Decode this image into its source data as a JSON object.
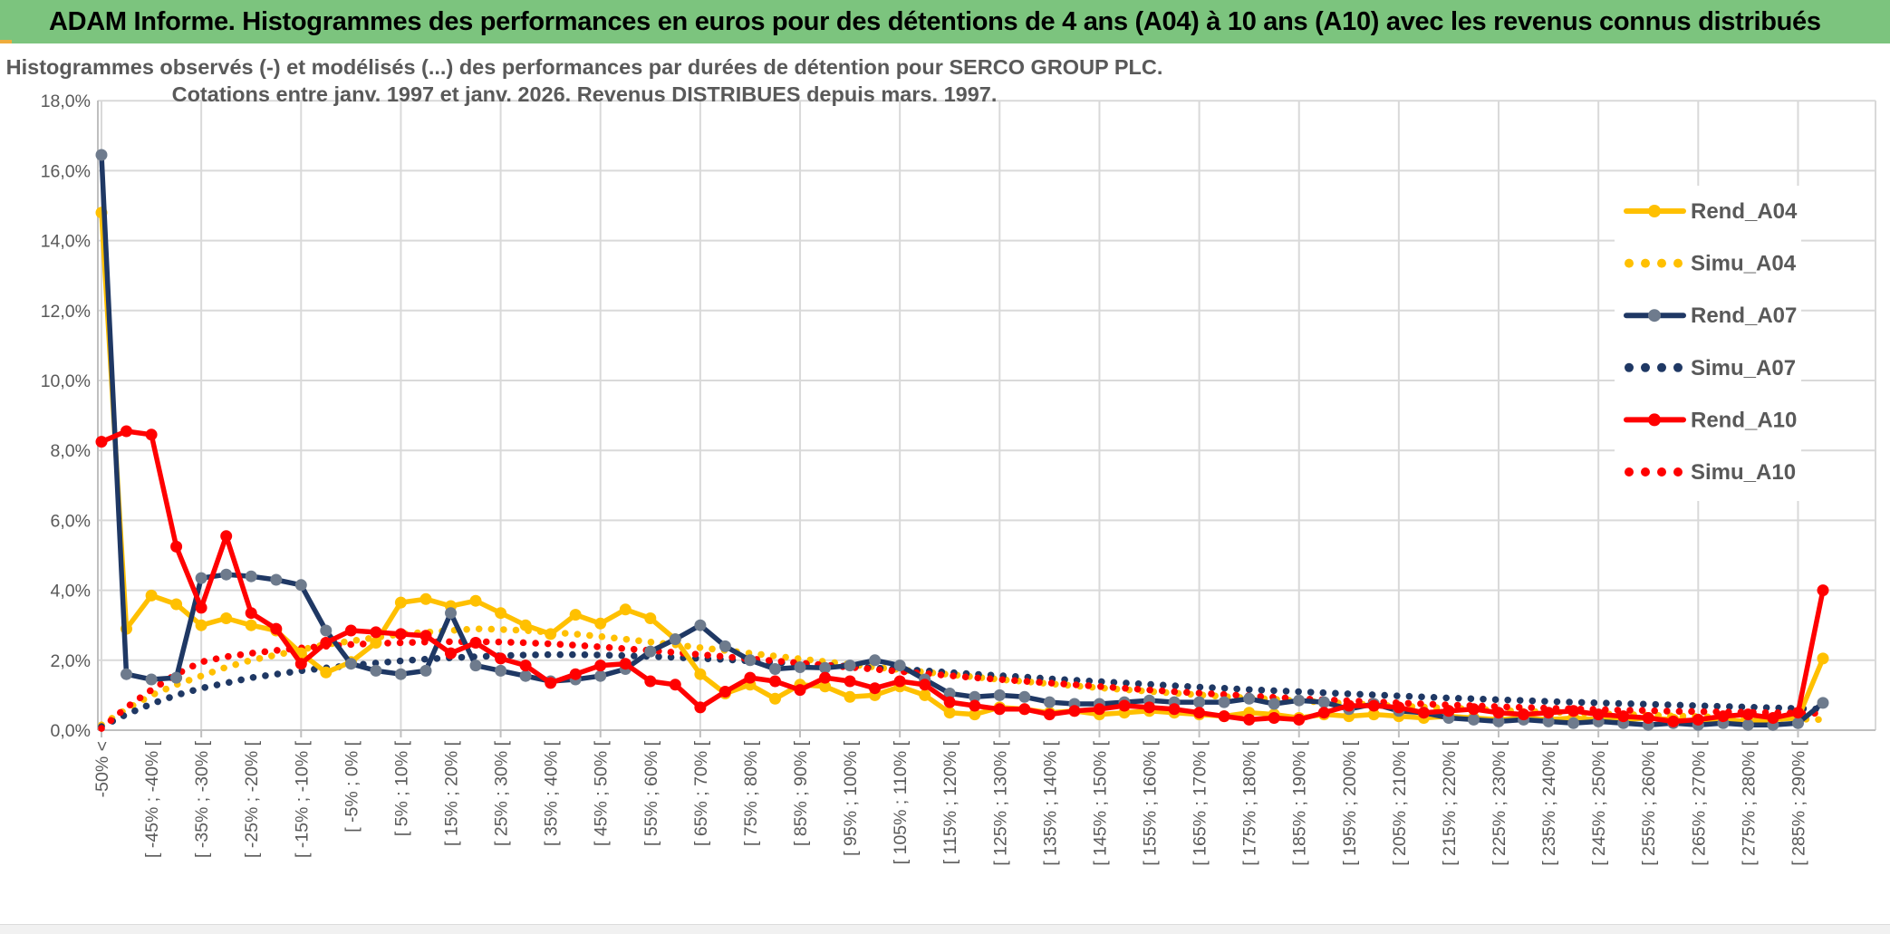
{
  "header": {
    "title": "ADAM Informe. Histogrammes des performances en euros pour des détentions de 4 ans (A04) à 10 ans (A10) avec les revenus connus distribués"
  },
  "colors": {
    "header_green": "#7CC47E",
    "accent_gold": "#EFAC3C",
    "title_text": "#595959",
    "axis_text": "#595959",
    "gridline": "#D9D9D9",
    "axis_line": "#BFBFBF",
    "series_yellow": "#FFC000",
    "series_navy": "#1F3864",
    "series_navy_marker": "#6E7B8D",
    "series_red": "#FF0000"
  },
  "chart_data": {
    "type": "line",
    "title_lines": [
      "Histogrammes observés (-) et modélisés (...) des performances par durées de détention pour SERCO GROUP PLC.",
      "Cotations entre janv. 1997 et janv. 2026. Revenus DISTRIBUES depuis mars. 1997."
    ],
    "grid": true,
    "legend_position": "right-upper",
    "ylim": [
      0,
      18
    ],
    "ytick_step_pct": 2,
    "ytick_labels": [
      "0,0%",
      "2,0%",
      "4,0%",
      "6,0%",
      "8,0%",
      "10,0%",
      "12,0%",
      "14,0%",
      "16,0%",
      "18,0%"
    ],
    "n_bins": 70,
    "x_labels_every_other_bin": [
      "-50% <",
      "[ -45% ; -40% [",
      "[ -35% ; -30% [",
      "[ -25% ; -20% [",
      "[ -15% ; -10% [",
      "[ -5% ; 0% [",
      "[ 5% ; 10% [",
      "[ 15% ; 20% [",
      "[ 25% ; 30% [",
      "[ 35% ; 40% [",
      "[ 45% ; 50% [",
      "[ 55% ; 60% [",
      "[ 65% ; 70% [",
      "[ 75% ; 80% [",
      "[ 85% ; 90% [",
      "[ 95% ; 100% [",
      "[ 105% ; 110% [",
      "[ 115% ; 120% [",
      "[ 125% ; 130% [",
      "[ 135% ; 140% [",
      "[ 145% ; 150% [",
      "[ 155% ; 160% [",
      "[ 165% ; 170% [",
      "[ 175% ; 180% [",
      "[ 185% ; 190% [",
      "[ 195% ; 200% [",
      "[ 205% ; 210% [",
      "[ 215% ; 220% [",
      "[ 225% ; 230% [",
      "[ 235% ; 240% [",
      "[ 245% ; 250% [",
      "[ 255% ; 260% [",
      "[ 265% ; 270% [",
      "[ 275% ; 280% [",
      "[ 285% ; 290% ["
    ],
    "series": [
      {
        "name": "Rend_A04",
        "style": "solid",
        "color": "#FFC000",
        "marker_color": "#FFC000",
        "values": [
          14.8,
          2.9,
          3.85,
          3.6,
          3.0,
          3.2,
          3.0,
          2.85,
          2.2,
          1.65,
          1.95,
          2.5,
          3.65,
          3.75,
          3.55,
          3.7,
          3.35,
          3.0,
          2.75,
          3.3,
          3.05,
          3.45,
          3.2,
          2.6,
          1.6,
          1.05,
          1.3,
          0.9,
          1.3,
          1.25,
          0.95,
          1.0,
          1.25,
          1.0,
          0.5,
          0.45,
          0.65,
          0.6,
          0.5,
          0.55,
          0.45,
          0.5,
          0.55,
          0.5,
          0.45,
          0.4,
          0.5,
          0.45,
          0.35,
          0.45,
          0.4,
          0.45,
          0.4,
          0.35,
          0.4,
          0.35,
          0.3,
          0.35,
          0.3,
          0.35,
          0.3,
          0.3,
          0.35,
          0.3,
          0.25,
          0.3,
          0.25,
          0.3,
          0.35,
          2.05
        ]
      },
      {
        "name": "Simu_A04",
        "style": "dotted",
        "color": "#FFC000",
        "values": [
          0.15,
          0.6,
          1.0,
          1.3,
          1.55,
          1.8,
          2.0,
          2.15,
          2.3,
          2.45,
          2.55,
          2.65,
          2.75,
          2.8,
          2.85,
          2.9,
          2.88,
          2.85,
          2.8,
          2.75,
          2.68,
          2.6,
          2.52,
          2.44,
          2.36,
          2.28,
          2.2,
          2.12,
          2.04,
          1.96,
          1.88,
          1.8,
          1.73,
          1.66,
          1.59,
          1.52,
          1.45,
          1.39,
          1.33,
          1.27,
          1.21,
          1.16,
          1.11,
          1.06,
          1.01,
          0.96,
          0.92,
          0.88,
          0.84,
          0.8,
          0.76,
          0.72,
          0.69,
          0.66,
          0.63,
          0.6,
          0.57,
          0.54,
          0.52,
          0.5,
          0.47,
          0.45,
          0.43,
          0.41,
          0.39,
          0.37,
          0.35,
          0.34,
          0.32,
          0.3
        ]
      },
      {
        "name": "Rend_A07",
        "style": "solid",
        "color": "#1F3864",
        "marker_color": "#6E7B8D",
        "values": [
          16.45,
          1.6,
          1.45,
          1.5,
          4.35,
          4.45,
          4.4,
          4.3,
          4.15,
          2.85,
          1.9,
          1.7,
          1.6,
          1.7,
          3.35,
          1.85,
          1.7,
          1.55,
          1.4,
          1.45,
          1.55,
          1.75,
          2.25,
          2.6,
          3.0,
          2.4,
          2.0,
          1.75,
          1.8,
          1.78,
          1.85,
          2.0,
          1.85,
          1.45,
          1.05,
          0.95,
          1.0,
          0.95,
          0.8,
          0.75,
          0.75,
          0.8,
          0.85,
          0.8,
          0.8,
          0.8,
          0.9,
          0.75,
          0.85,
          0.8,
          0.6,
          0.75,
          0.55,
          0.5,
          0.35,
          0.3,
          0.25,
          0.3,
          0.25,
          0.2,
          0.25,
          0.2,
          0.15,
          0.2,
          0.15,
          0.2,
          0.15,
          0.15,
          0.2,
          0.78
        ]
      },
      {
        "name": "Simu_A07",
        "style": "dotted",
        "color": "#1F3864",
        "values": [
          0.1,
          0.45,
          0.75,
          1.0,
          1.2,
          1.35,
          1.5,
          1.6,
          1.7,
          1.78,
          1.85,
          1.92,
          1.98,
          2.03,
          2.07,
          2.1,
          2.13,
          2.15,
          2.16,
          2.16,
          2.15,
          2.13,
          2.11,
          2.08,
          2.05,
          2.02,
          1.98,
          1.94,
          1.9,
          1.86,
          1.82,
          1.78,
          1.74,
          1.7,
          1.65,
          1.6,
          1.56,
          1.52,
          1.47,
          1.43,
          1.39,
          1.35,
          1.31,
          1.27,
          1.23,
          1.2,
          1.16,
          1.13,
          1.1,
          1.07,
          1.04,
          1.01,
          0.98,
          0.95,
          0.92,
          0.9,
          0.87,
          0.85,
          0.82,
          0.8,
          0.78,
          0.76,
          0.74,
          0.72,
          0.7,
          0.68,
          0.66,
          0.64,
          0.62,
          0.6
        ]
      },
      {
        "name": "Rend_A10",
        "style": "solid",
        "color": "#FF0000",
        "marker_color": "#FF0000",
        "values": [
          8.25,
          8.55,
          8.45,
          5.25,
          3.5,
          5.55,
          3.35,
          2.9,
          1.9,
          2.5,
          2.85,
          2.8,
          2.75,
          2.7,
          2.2,
          2.5,
          2.05,
          1.85,
          1.35,
          1.6,
          1.85,
          1.9,
          1.4,
          1.3,
          0.65,
          1.1,
          1.5,
          1.4,
          1.15,
          1.5,
          1.4,
          1.2,
          1.4,
          1.3,
          0.8,
          0.7,
          0.6,
          0.6,
          0.45,
          0.55,
          0.6,
          0.7,
          0.65,
          0.6,
          0.5,
          0.4,
          0.3,
          0.35,
          0.3,
          0.5,
          0.7,
          0.7,
          0.65,
          0.5,
          0.55,
          0.6,
          0.5,
          0.45,
          0.5,
          0.55,
          0.45,
          0.4,
          0.35,
          0.25,
          0.3,
          0.4,
          0.45,
          0.35,
          0.5,
          4.0
        ]
      },
      {
        "name": "Simu_A10",
        "style": "dotted",
        "color": "#FF0000",
        "values": [
          0.05,
          0.65,
          1.15,
          1.6,
          1.95,
          2.1,
          2.2,
          2.28,
          2.35,
          2.4,
          2.45,
          2.48,
          2.5,
          2.52,
          2.53,
          2.53,
          2.52,
          2.5,
          2.47,
          2.43,
          2.38,
          2.33,
          2.28,
          2.22,
          2.16,
          2.1,
          2.04,
          1.98,
          1.92,
          1.86,
          1.8,
          1.74,
          1.68,
          1.62,
          1.56,
          1.5,
          1.45,
          1.4,
          1.35,
          1.3,
          1.25,
          1.2,
          1.15,
          1.1,
          1.06,
          1.02,
          0.98,
          0.94,
          0.9,
          0.87,
          0.84,
          0.81,
          0.78,
          0.75,
          0.72,
          0.7,
          0.67,
          0.65,
          0.63,
          0.61,
          0.59,
          0.57,
          0.56,
          0.54,
          0.53,
          0.52,
          0.51,
          0.5,
          0.49,
          0.48
        ]
      }
    ]
  }
}
